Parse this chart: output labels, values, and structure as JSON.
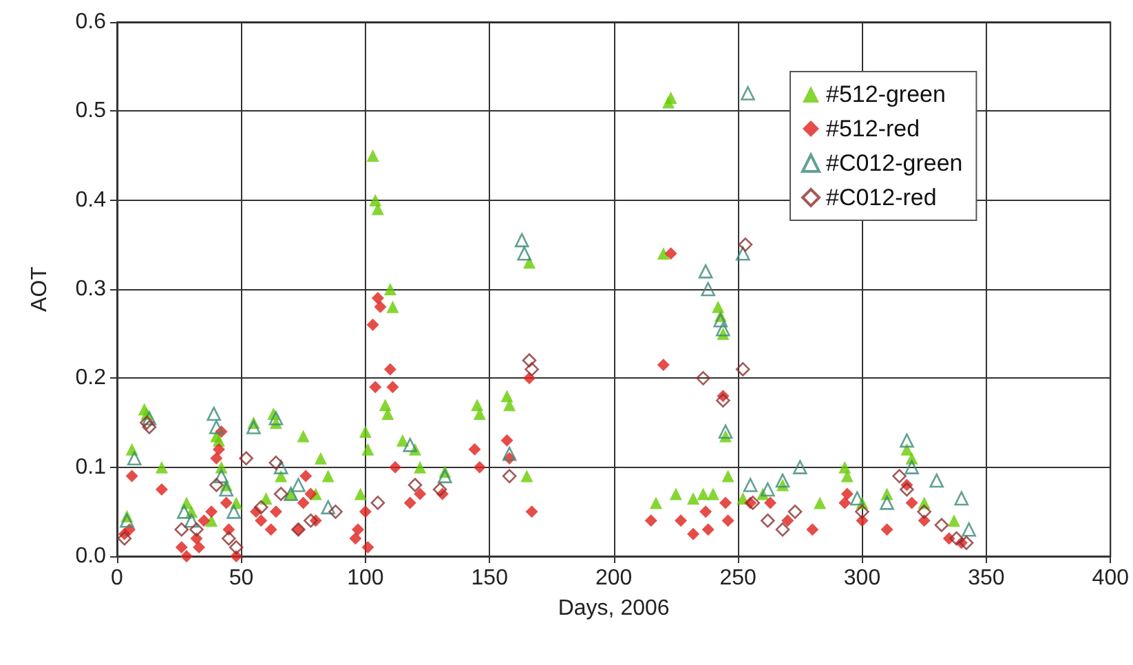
{
  "chart_data": {
    "type": "scatter",
    "xlabel": "Days, 2006",
    "ylabel": "AOT",
    "xlim": [
      0,
      400
    ],
    "xticks": [
      0,
      50,
      100,
      150,
      200,
      250,
      300,
      350,
      400
    ],
    "ylim": [
      0,
      0.6
    ],
    "yticks": [
      {
        "value": 0,
        "label": "0.0"
      },
      {
        "value": 0.1,
        "label": "0.1"
      },
      {
        "value": 0.2,
        "label": "0.2"
      },
      {
        "value": 0.3,
        "label": "0.3"
      },
      {
        "value": 0.4,
        "label": "0.4"
      },
      {
        "value": 0.5,
        "label": "0.5"
      },
      {
        "value": 0.6,
        "label": "0.6"
      }
    ],
    "grid": true,
    "legend": "top right",
    "series": [
      {
        "name": "#512-green",
        "color": "#66cc00",
        "marker": "triangle",
        "x": [
          4,
          6,
          11,
          12,
          18,
          28,
          30,
          38,
          40,
          41,
          42,
          44,
          48,
          55,
          60,
          63,
          64,
          66,
          70,
          75,
          80,
          82,
          85,
          98,
          100,
          101,
          103,
          104,
          105,
          108,
          109,
          110,
          111,
          115,
          120,
          122,
          132,
          145,
          146,
          157,
          158,
          165,
          166,
          217,
          220,
          222,
          223,
          225,
          232,
          236,
          240,
          242,
          243,
          244,
          245,
          246,
          252,
          260,
          268,
          283,
          293,
          294,
          300,
          310,
          318,
          320,
          325,
          337
        ],
        "values": [
          0.045,
          0.12,
          0.165,
          0.16,
          0.1,
          0.06,
          0.05,
          0.04,
          0.135,
          0.13,
          0.1,
          0.08,
          0.06,
          0.15,
          0.065,
          0.16,
          0.15,
          0.09,
          0.07,
          0.135,
          0.07,
          0.11,
          0.09,
          0.07,
          0.14,
          0.12,
          0.45,
          0.4,
          0.39,
          0.17,
          0.16,
          0.3,
          0.28,
          0.13,
          0.12,
          0.1,
          0.095,
          0.17,
          0.16,
          0.18,
          0.17,
          0.09,
          0.33,
          0.06,
          0.34,
          0.51,
          0.515,
          0.07,
          0.065,
          0.07,
          0.07,
          0.28,
          0.27,
          0.25,
          0.135,
          0.09,
          0.065,
          0.07,
          0.08,
          0.06,
          0.1,
          0.09,
          0.06,
          0.07,
          0.12,
          0.11,
          0.06,
          0.04
        ]
      },
      {
        "name": "#512-red",
        "color": "#e0201c",
        "marker": "diamond",
        "x": [
          3,
          5,
          6,
          18,
          26,
          28,
          32,
          33,
          35,
          38,
          40,
          41,
          42,
          44,
          45,
          48,
          56,
          58,
          62,
          64,
          73,
          75,
          76,
          78,
          80,
          96,
          97,
          100,
          101,
          103,
          104,
          105,
          106,
          110,
          111,
          112,
          118,
          122,
          131,
          144,
          146,
          157,
          158,
          166,
          167,
          215,
          220,
          223,
          227,
          232,
          237,
          238,
          244,
          245,
          246,
          255,
          263,
          270,
          280,
          293,
          294,
          300,
          310,
          318,
          320,
          325,
          335,
          340
        ],
        "values": [
          0.025,
          0.03,
          0.09,
          0.075,
          0.01,
          0,
          0.02,
          0.01,
          0.04,
          0.05,
          0.11,
          0.12,
          0.14,
          0.06,
          0.03,
          0,
          0.05,
          0.04,
          0.03,
          0.05,
          0.03,
          0.06,
          0.09,
          0.07,
          0.04,
          0.02,
          0.03,
          0.05,
          0.01,
          0.26,
          0.19,
          0.29,
          0.28,
          0.21,
          0.19,
          0.1,
          0.06,
          0.07,
          0.07,
          0.12,
          0.1,
          0.13,
          0.11,
          0.2,
          0.05,
          0.04,
          0.215,
          0.34,
          0.04,
          0.025,
          0.05,
          0.03,
          0.18,
          0.06,
          0.04,
          0.06,
          0.06,
          0.04,
          0.03,
          0.06,
          0.07,
          0.04,
          0.03,
          0.08,
          0.06,
          0.04,
          0.02,
          0.015
        ]
      },
      {
        "name": "#C012-green",
        "color": "#3a8a78",
        "marker": "triangle",
        "x": [
          4,
          7,
          13,
          27,
          30,
          39,
          40,
          42,
          44,
          47,
          55,
          64,
          66,
          70,
          73,
          85,
          118,
          132,
          158,
          163,
          164,
          237,
          238,
          243,
          244,
          245,
          252,
          254,
          255,
          262,
          268,
          275,
          298,
          310,
          318,
          320,
          330,
          340,
          343
        ],
        "values": [
          0.04,
          0.11,
          0.155,
          0.05,
          0.04,
          0.16,
          0.145,
          0.09,
          0.075,
          0.05,
          0.145,
          0.155,
          0.1,
          0.07,
          0.08,
          0.055,
          0.125,
          0.09,
          0.115,
          0.355,
          0.34,
          0.32,
          0.3,
          0.265,
          0.255,
          0.14,
          0.34,
          0.52,
          0.08,
          0.075,
          0.085,
          0.1,
          0.065,
          0.06,
          0.13,
          0.1,
          0.085,
          0.065,
          0.03
        ]
      },
      {
        "name": "#C012-red",
        "color": "#8b3030",
        "marker": "diamond",
        "x": [
          3,
          12,
          13,
          26,
          32,
          40,
          45,
          48,
          52,
          58,
          64,
          66,
          73,
          78,
          88,
          105,
          120,
          130,
          158,
          166,
          167,
          236,
          244,
          252,
          253,
          256,
          262,
          268,
          273,
          300,
          315,
          318,
          325,
          332,
          338,
          342
        ],
        "values": [
          0.02,
          0.15,
          0.145,
          0.03,
          0.03,
          0.08,
          0.02,
          0.01,
          0.11,
          0.055,
          0.105,
          0.07,
          0.03,
          0.04,
          0.05,
          0.06,
          0.08,
          0.075,
          0.09,
          0.22,
          0.21,
          0.2,
          0.175,
          0.21,
          0.35,
          0.06,
          0.04,
          0.03,
          0.05,
          0.05,
          0.09,
          0.075,
          0.05,
          0.035,
          0.02,
          0.015
        ]
      }
    ]
  }
}
